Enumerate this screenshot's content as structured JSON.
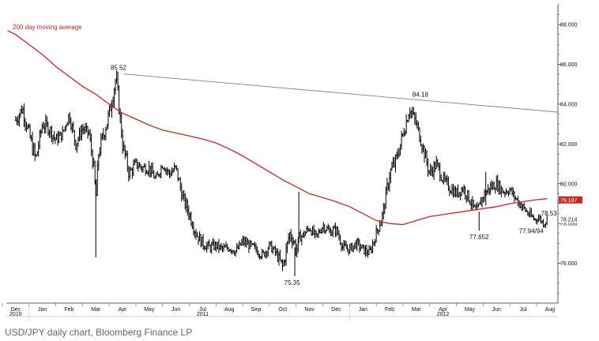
{
  "caption": "USD/JPY daily chart, Bloomberg Finance LP",
  "chart_data": {
    "type": "line",
    "title": "",
    "xlabel": "",
    "ylabel": "",
    "ylim": [
      74.0,
      89.0
    ],
    "y_ticks": [
      {
        "value": 76,
        "label": "76.000"
      },
      {
        "value": 78,
        "label": "78.000"
      },
      {
        "value": 80,
        "label": "80.000"
      },
      {
        "value": 82,
        "label": "82.000"
      },
      {
        "value": 84,
        "label": "84.000"
      },
      {
        "value": 86,
        "label": "86.000"
      },
      {
        "value": 88,
        "label": "88.000"
      }
    ],
    "x_ticks": [
      {
        "label": "Dec",
        "t": 0
      },
      {
        "label": "Jan",
        "t": 1
      },
      {
        "label": "Feb",
        "t": 2
      },
      {
        "label": "Mar",
        "t": 3
      },
      {
        "label": "Apr",
        "t": 4
      },
      {
        "label": "May",
        "t": 5
      },
      {
        "label": "Jun",
        "t": 6
      },
      {
        "label": "Jul",
        "t": 7
      },
      {
        "label": "Aug",
        "t": 8
      },
      {
        "label": "Sep",
        "t": 9
      },
      {
        "label": "Oct",
        "t": 10
      },
      {
        "label": "Nov",
        "t": 11
      },
      {
        "label": "Dec",
        "t": 12
      },
      {
        "label": "Jan",
        "t": 13
      },
      {
        "label": "Feb",
        "t": 14
      },
      {
        "label": "Mar",
        "t": 15
      },
      {
        "label": "Apr",
        "t": 16
      },
      {
        "label": "May",
        "t": 17
      },
      {
        "label": "Jun",
        "t": 18
      },
      {
        "label": "Jul",
        "t": 19
      },
      {
        "label": "Aug",
        "t": 20
      }
    ],
    "year_labels": [
      {
        "label": "2010",
        "t": 0
      },
      {
        "label": "2011",
        "t": 7
      },
      {
        "label": "2012",
        "t": 16
      }
    ],
    "x_end": 20.3,
    "series": [
      {
        "name": "",
        "color": "#000000",
        "style": "bar-ohlc",
        "x": [
          0,
          0.25,
          0.5,
          0.75,
          1,
          1.25,
          1.5,
          1.75,
          2,
          2.25,
          2.5,
          2.75,
          2.95,
          3,
          3.1,
          3.25,
          3.5,
          3.75,
          3.85,
          4,
          4.25,
          4.5,
          4.75,
          5,
          5.25,
          5.5,
          5.75,
          6,
          6.25,
          6.5,
          6.75,
          7,
          7.25,
          7.5,
          7.75,
          8,
          8.25,
          8.5,
          8.75,
          9,
          9.25,
          9.5,
          9.75,
          10,
          10.25,
          10.45,
          10.5,
          10.6,
          10.75,
          11,
          11.25,
          11.5,
          11.75,
          12,
          12.25,
          12.5,
          12.75,
          13,
          13.25,
          13.5,
          13.75,
          14,
          14.25,
          14.5,
          14.75,
          15,
          15.25,
          15.5,
          15.75,
          16,
          16.25,
          16.5,
          16.75,
          17,
          17.25,
          17.5,
          17.75,
          18,
          18.25,
          18.5,
          18.75,
          19,
          19.25,
          19.45,
          19.6,
          19.75,
          19.9
        ],
        "values": [
          83.2,
          83.8,
          82.5,
          81.2,
          83.0,
          82.8,
          82.2,
          82.5,
          83.5,
          82.0,
          82.8,
          82.5,
          80.5,
          79.0,
          81.5,
          82.3,
          83.5,
          85.3,
          84.2,
          82.0,
          80.5,
          81.0,
          80.8,
          80.8,
          80.2,
          81.0,
          80.5,
          80.8,
          79.3,
          78.5,
          77.5,
          77.0,
          76.8,
          76.9,
          76.7,
          76.8,
          76.6,
          77.1,
          76.9,
          76.7,
          76.4,
          76.9,
          76.5,
          75.8,
          77.5,
          77.0,
          76.5,
          77.3,
          77.4,
          77.8,
          77.3,
          77.9,
          77.6,
          77.7,
          76.8,
          76.7,
          77.0,
          76.7,
          76.5,
          77.5,
          78.5,
          80.5,
          81.2,
          82.5,
          83.8,
          83.0,
          81.8,
          80.5,
          81.0,
          80.2,
          79.8,
          79.5,
          79.8,
          79.2,
          78.5,
          79.4,
          79.8,
          80.0,
          79.6,
          79.7,
          79.2,
          78.8,
          78.4,
          78.2,
          78.3,
          78.0,
          78.2
        ],
        "volatility": [
          0.8,
          0.7,
          0.8,
          0.9,
          0.7,
          0.7,
          0.6,
          0.6,
          0.6,
          0.7,
          0.6,
          0.6,
          0.8,
          1.2,
          0.9,
          0.8,
          0.9,
          0.9,
          1.0,
          0.8,
          0.7,
          0.6,
          0.6,
          0.6,
          0.5,
          0.5,
          0.6,
          0.6,
          0.7,
          0.7,
          0.6,
          0.6,
          0.5,
          0.5,
          0.5,
          0.5,
          0.5,
          0.5,
          0.5,
          0.5,
          0.5,
          0.5,
          0.5,
          0.7,
          0.7,
          0.6,
          0.6,
          0.5,
          0.5,
          0.5,
          0.5,
          0.5,
          0.5,
          0.5,
          0.5,
          0.5,
          0.5,
          0.5,
          0.5,
          0.6,
          0.7,
          0.8,
          0.8,
          0.8,
          0.7,
          0.7,
          0.7,
          0.7,
          0.6,
          0.6,
          0.6,
          0.6,
          0.6,
          0.6,
          0.6,
          0.6,
          0.6,
          0.6,
          0.5,
          0.5,
          0.5,
          0.5,
          0.5,
          0.4,
          0.4,
          0.4,
          0.4
        ]
      },
      {
        "name": "200 day moving average",
        "color": "#d6221e",
        "style": "line",
        "x": [
          -0.3,
          0,
          0.5,
          1,
          1.5,
          2,
          2.5,
          3,
          3.5,
          4,
          4.5,
          5,
          5.5,
          6,
          6.5,
          7,
          7.5,
          8,
          8.5,
          9,
          9.5,
          10,
          10.5,
          11,
          11.5,
          12,
          12.5,
          13,
          13.5,
          14,
          14.5,
          15,
          15.5,
          16,
          16.5,
          17,
          17.5,
          18,
          18.5,
          19,
          19.5,
          19.9
        ],
        "values": [
          87.7,
          87.5,
          87.0,
          86.5,
          85.9,
          85.4,
          84.9,
          84.5,
          84.0,
          83.55,
          83.25,
          82.95,
          82.7,
          82.55,
          82.4,
          82.25,
          82.05,
          81.75,
          81.4,
          81.0,
          80.6,
          80.2,
          79.85,
          79.5,
          79.3,
          79.1,
          78.85,
          78.5,
          78.15,
          78.0,
          77.95,
          78.15,
          78.35,
          78.45,
          78.55,
          78.65,
          78.75,
          78.85,
          79.0,
          79.1,
          79.2,
          79.25
        ]
      },
      {
        "name": "",
        "color": "#777777",
        "style": "trendline",
        "x": [
          4.05,
          20.3
        ],
        "values": [
          85.52,
          83.6
        ]
      }
    ],
    "annotations": [
      {
        "text": "85.52",
        "t": 3.85,
        "v": 85.52,
        "pos": "above"
      },
      {
        "text": "84.18",
        "t": 15.15,
        "v": 84.18,
        "pos": "above"
      },
      {
        "text": "75.35",
        "t": 10.35,
        "v": 75.35,
        "pos": "below"
      },
      {
        "text": "77.652",
        "t": 17.35,
        "v": 77.652,
        "pos": "below"
      },
      {
        "text": "78.53",
        "t": 19.55,
        "v": 78.53,
        "pos": "right"
      },
      {
        "text": "77.94/94",
        "t": 19.3,
        "v": 77.94,
        "pos": "below"
      }
    ],
    "legend": {
      "text": "200 day moving average",
      "placement": "top-left"
    },
    "last_value_tags": [
      {
        "text": "79.187",
        "v": 79.187,
        "bg": "#d6221e",
        "fg": "#ffffff"
      },
      {
        "text": "78.214",
        "v": 78.214,
        "bg": "#ffffff",
        "fg": "#111111"
      }
    ],
    "grid": false
  }
}
